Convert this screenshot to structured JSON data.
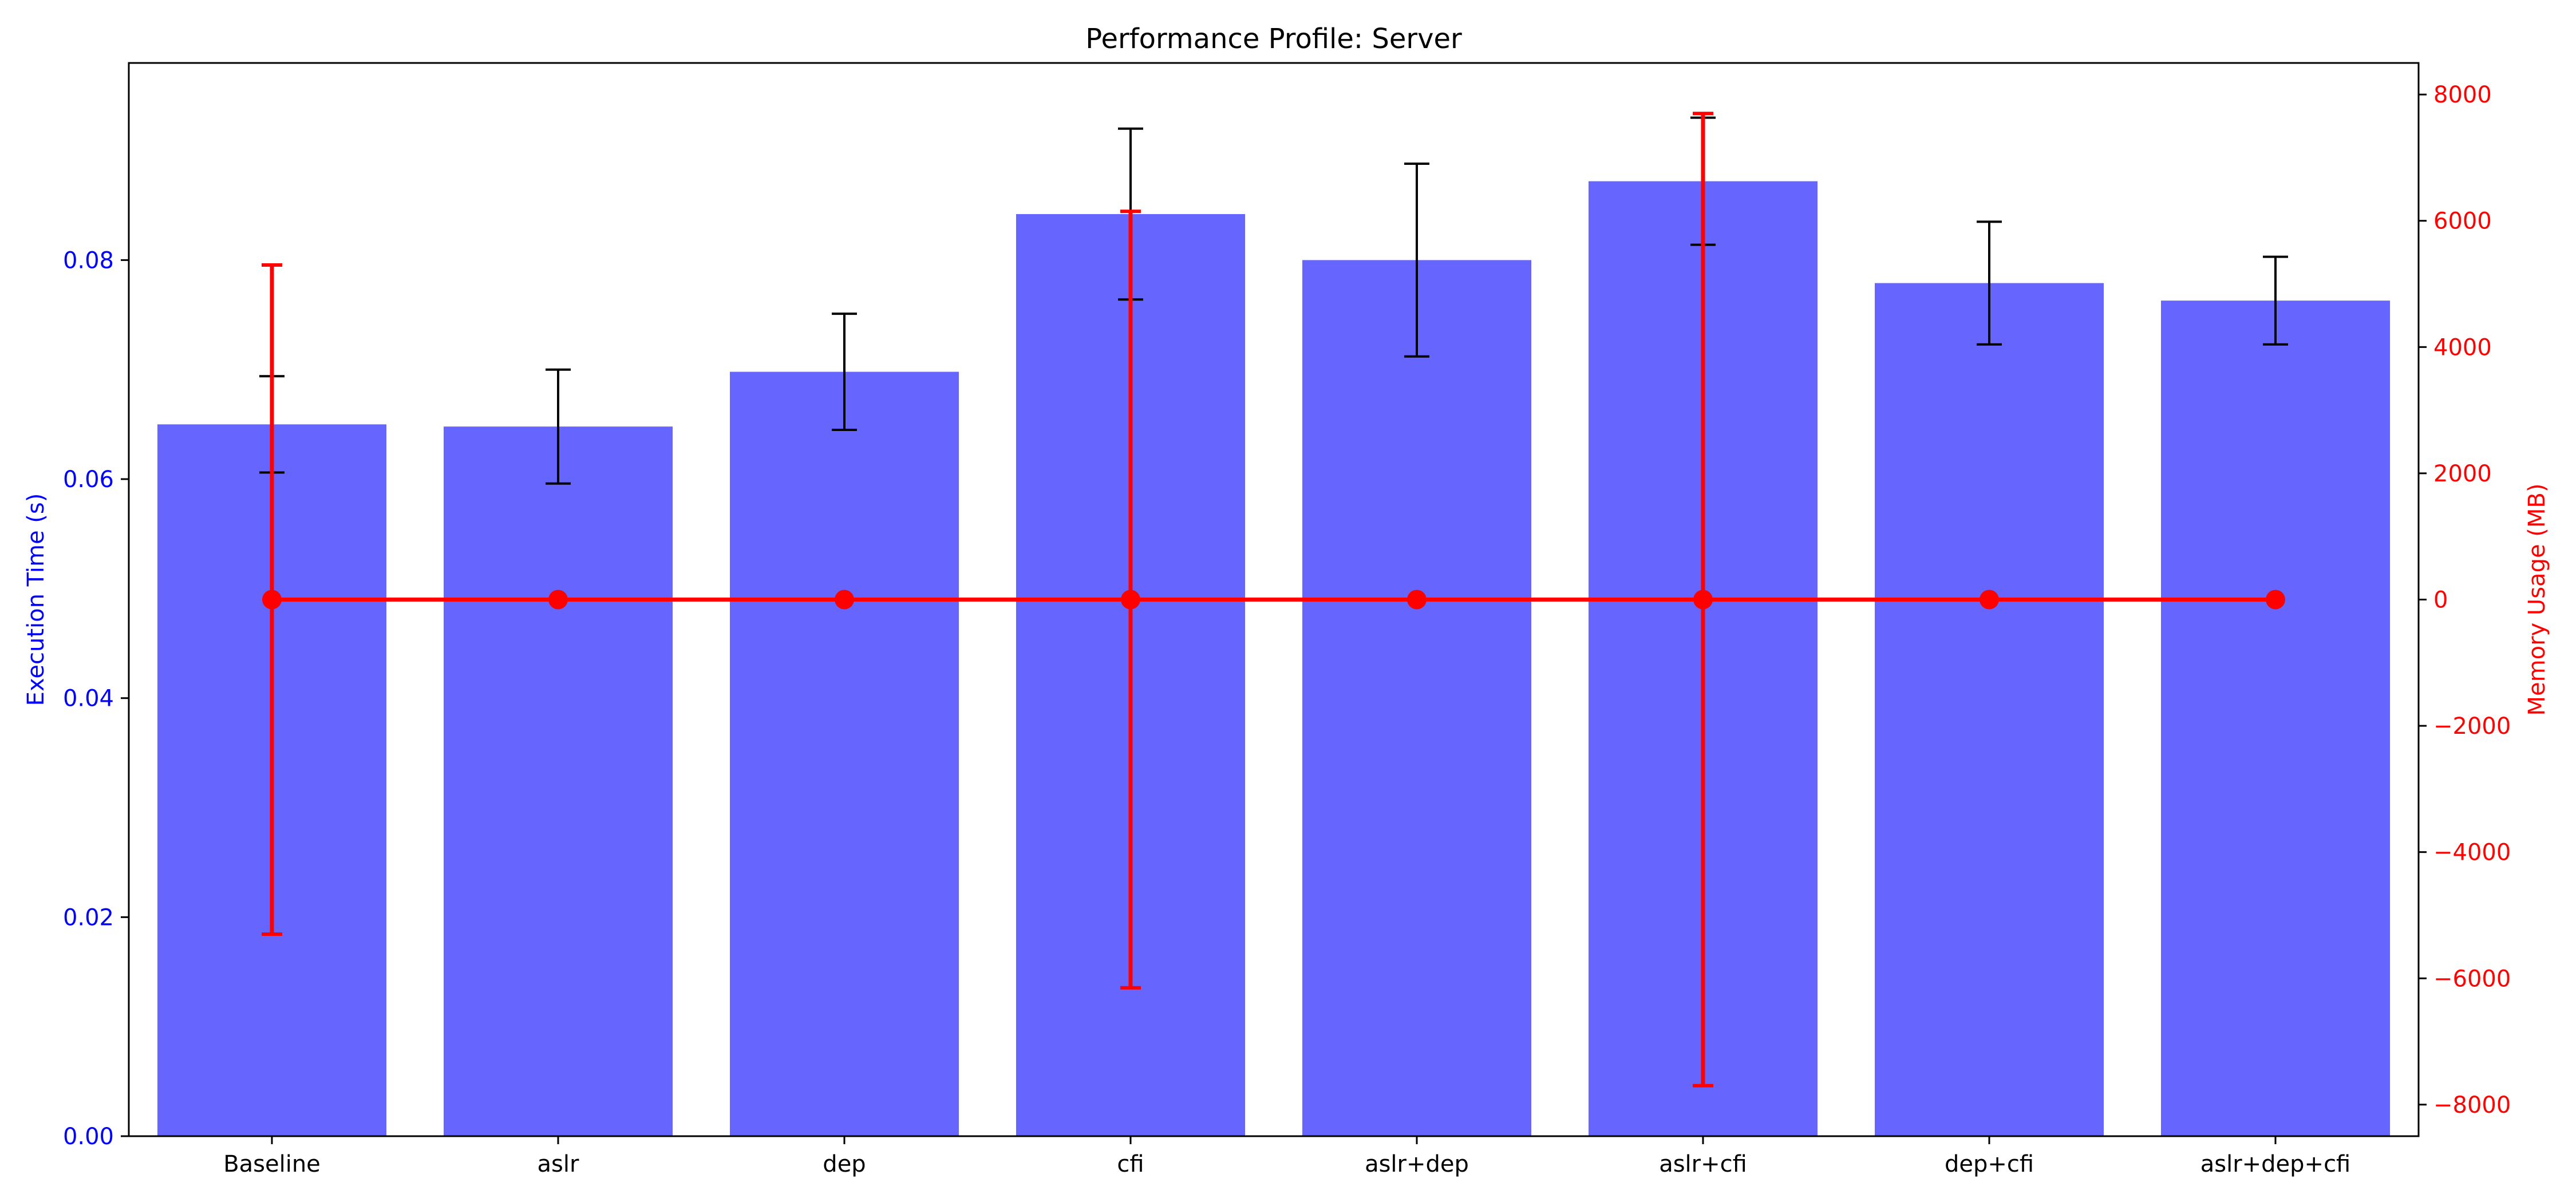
{
  "chart_data": {
    "type": "bar",
    "title": "Performance Profile: Server",
    "categories": [
      "Baseline",
      "aslr",
      "dep",
      "cfi",
      "aslr+dep",
      "aslr+cfi",
      "dep+cfi",
      "aslr+dep+cfi"
    ],
    "series": [
      {
        "name": "Execution Time (s)",
        "type": "bar",
        "axis": "left",
        "color": "#6666ff",
        "values": [
          0.065,
          0.0648,
          0.0698,
          0.0842,
          0.08,
          0.0872,
          0.0779,
          0.0763
        ],
        "error": [
          0.0044,
          0.0052,
          0.0053,
          0.0078,
          0.0088,
          0.0058,
          0.0056,
          0.004
        ],
        "error_color": "#000000"
      },
      {
        "name": "Memory Usage (MB)",
        "type": "line",
        "axis": "right",
        "color": "#ff0000",
        "values": [
          0,
          0,
          0,
          0,
          0,
          0,
          0,
          0
        ],
        "error": [
          5300,
          0,
          0,
          6150,
          0,
          7700,
          0,
          0
        ]
      }
    ],
    "y_left": {
      "label": "Execution Time (s)",
      "color": "#0000ff",
      "ylim": [
        0,
        0.098
      ],
      "ticks": [
        0.0,
        0.02,
        0.04,
        0.06,
        0.08
      ],
      "tick_labels": [
        "0.00",
        "0.02",
        "0.04",
        "0.06",
        "0.08"
      ]
    },
    "y_right": {
      "label": "Memory Usage (MB)",
      "color": "#ff0000",
      "ylim": [
        -8500,
        8500
      ],
      "ticks": [
        -8000,
        -6000,
        -4000,
        -2000,
        0,
        2000,
        4000,
        6000,
        8000
      ],
      "tick_labels": [
        "−8000",
        "−6000",
        "−4000",
        "−2000",
        "0",
        "2000",
        "4000",
        "6000",
        "8000"
      ]
    },
    "grid": false,
    "legend": "none"
  }
}
